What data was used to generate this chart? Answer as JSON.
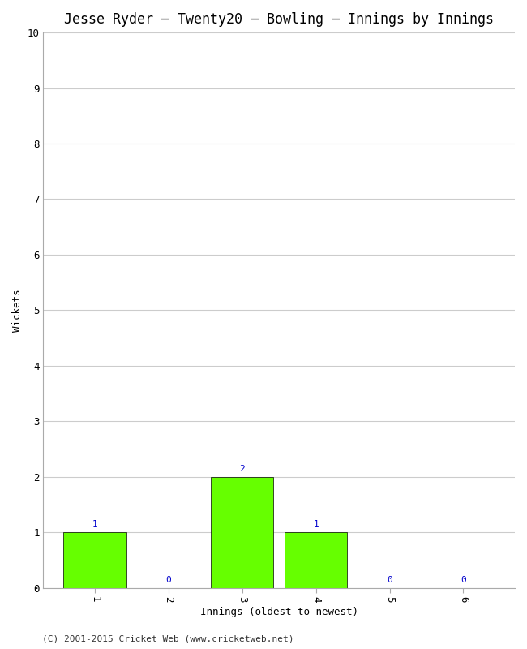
{
  "title": "Jesse Ryder – Twenty20 – Bowling – Innings by Innings",
  "xlabel": "Innings (oldest to newest)",
  "ylabel": "Wickets",
  "categories": [
    1,
    2,
    3,
    4,
    5,
    6
  ],
  "values": [
    1,
    0,
    2,
    1,
    0,
    0
  ],
  "bar_color": "#66ff00",
  "bar_edge_color": "#000000",
  "label_color": "#0000cc",
  "ylim": [
    0,
    10
  ],
  "yticks": [
    0,
    1,
    2,
    3,
    4,
    5,
    6,
    7,
    8,
    9,
    10
  ],
  "xticks": [
    1,
    2,
    3,
    4,
    5,
    6
  ],
  "background_color": "#ffffff",
  "grid_color": "#cccccc",
  "footer": "(C) 2001-2015 Cricket Web (www.cricketweb.net)",
  "title_fontsize": 12,
  "axis_label_fontsize": 9,
  "tick_fontsize": 9,
  "bar_label_fontsize": 8,
  "footer_fontsize": 8,
  "bar_width": 0.85,
  "xlim": [
    0.3,
    6.7
  ]
}
